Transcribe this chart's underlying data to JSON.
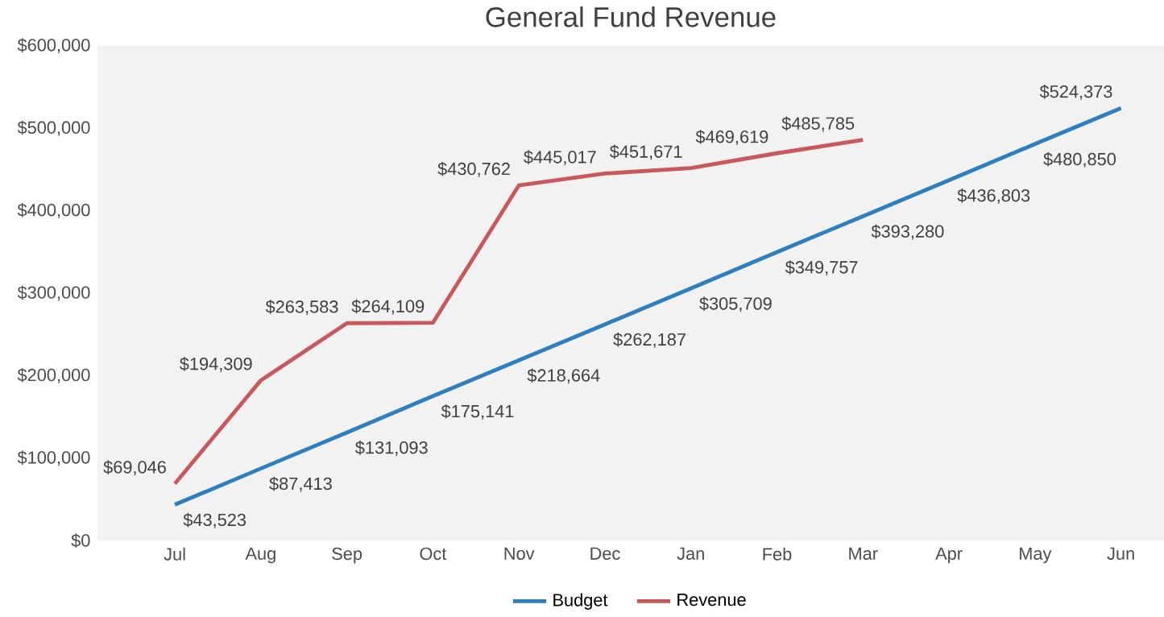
{
  "chart_data": {
    "type": "line",
    "title": "General Fund Revenue",
    "categories": [
      "Jul",
      "Aug",
      "Sep",
      "Oct",
      "Nov",
      "Dec",
      "Jan",
      "Feb",
      "Mar",
      "Apr",
      "May",
      "Jun"
    ],
    "series": [
      {
        "name": "Budget",
        "color": "#2e7fc0",
        "values": [
          43523,
          87413,
          131093,
          175141,
          218664,
          262187,
          305709,
          349757,
          393280,
          436803,
          480850,
          524373
        ],
        "value_labels": [
          "$43,523",
          "$87,413",
          "$131,093",
          "$175,141",
          "$218,664",
          "$262,187",
          "$305,709",
          "$349,757",
          "$393,280",
          "$436,803",
          "$480,850",
          "$524,373"
        ]
      },
      {
        "name": "Revenue",
        "color": "#c9585c",
        "values": [
          69046,
          194309,
          263583,
          264109,
          430762,
          445017,
          451671,
          469619,
          485785,
          null,
          null,
          null
        ],
        "value_labels": [
          "$69,046",
          "$194,309",
          "$263,583",
          "$264,109",
          "$430,762",
          "$445,017",
          "$451,671",
          "$469,619",
          "$485,785",
          null,
          null,
          null
        ]
      }
    ],
    "ylim": [
      0,
      600000
    ],
    "yticks": [
      {
        "value": 0,
        "label": "$0"
      },
      {
        "value": 100000,
        "label": "$100,000"
      },
      {
        "value": 200000,
        "label": "$200,000"
      },
      {
        "value": 300000,
        "label": "$300,000"
      },
      {
        "value": 400000,
        "label": "$400,000"
      },
      {
        "value": 500000,
        "label": "$500,000"
      },
      {
        "value": 600000,
        "label": "$600,000"
      }
    ],
    "legend": "bottom",
    "marker": "none",
    "line_style": "solid"
  }
}
